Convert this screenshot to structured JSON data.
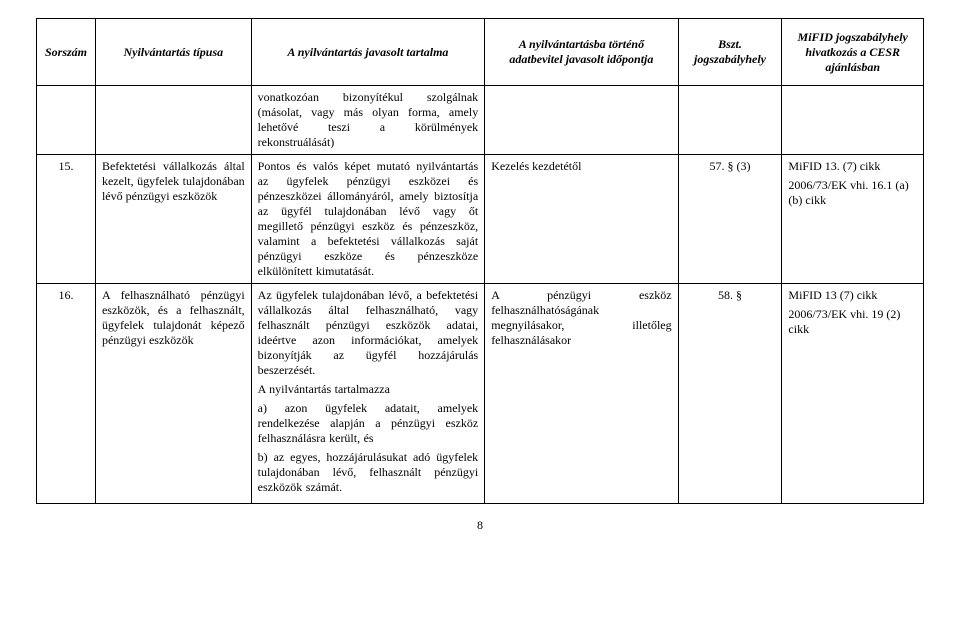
{
  "table": {
    "headers": {
      "c1": "Sorszám",
      "c2": "Nyilvántartás típusa",
      "c3": "A nyilvántartás javasolt tartalma",
      "c4": "A nyilvántartásba történő adatbevitel javasolt időpontja",
      "c5": "Bszt. jogszabályhely",
      "c6": "MiFID jogszabályhely hivatkozás a CESR ajánlásban"
    },
    "rows": [
      {
        "num": "",
        "type": "",
        "content": "vonatkozóan bizonyítékul szolgálnak (másolat, vagy más olyan forma, amely lehetővé teszi a körülmények rekonstruálását)",
        "timing": "",
        "bszt": "",
        "mifid": ""
      },
      {
        "num": "15.",
        "type": "Befektetési vállalkozás által kezelt, ügyfelek tulajdonában lévő pénzügyi eszközök",
        "content": "Pontos és valós képet mutató nyilvántartás az ügyfelek pénzügyi eszközei és pénzeszközei állományáról, amely biztosítja az ügyfél tulajdonában lévő vagy őt megillető pénzügyi eszköz és pénzeszköz, valamint a befektetési vállalkozás saját pénzügyi eszköze és pénzeszköze elkülönített kimutatását.",
        "timing": "Kezelés kezdetétől",
        "bszt": "57. § (3)",
        "mifid_line1": "MiFID 13. (7) cikk",
        "mifid_line2": "2006/73/EK vhi. 16.1 (a) (b) cikk"
      },
      {
        "num": "16.",
        "type": "A felhasználható pénzügyi eszközök, és a felhasznált, ügyfelek tulajdonát képező pénzügyi eszközök",
        "content_p1": "Az ügyfelek tulajdonában lévő, a befektetési vállalkozás által felhasználható, vagy felhasznált pénzügyi eszközök adatai, ideértve azon információkat, amelyek bizonyítják az ügyfél hozzájárulás beszerzését.",
        "content_p2": "A nyilvántartás tartalmazza",
        "content_p3": "a) azon ügyfelek adatait, amelyek rendelkezése alapján a pénzügyi eszköz felhasználásra került, és",
        "content_p4": "b) az egyes, hozzájárulásukat adó ügyfelek tulajdonában lévő, felhasznált pénzügyi eszközök számát.",
        "timing": "A pénzügyi eszköz felhasználhatóságának megnyilásakor, illetőleg felhasználásakor",
        "bszt": "58. §",
        "mifid_line1": "MiFID 13 (7) cikk",
        "mifid_line2": "2006/73/EK vhi. 19 (2) cikk"
      }
    ]
  },
  "pageNumber": "8"
}
